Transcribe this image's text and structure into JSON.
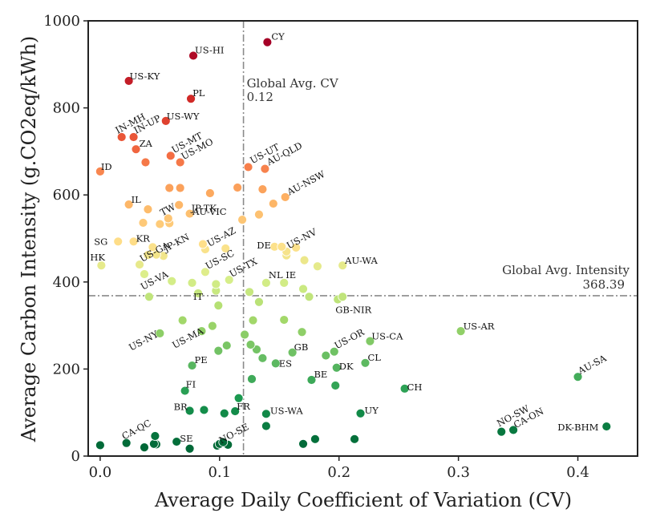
{
  "chart_data": {
    "type": "scatter",
    "xlabel": "Average Daily Coefficient of Variation (CV)",
    "ylabel": "Average Carbon Intensity (g.CO2eq/kWh)",
    "xlim": [
      -0.01,
      0.45
    ],
    "ylim": [
      0,
      1000
    ],
    "xticks": [
      "0.0",
      "0.1",
      "0.2",
      "0.3",
      "0.4"
    ],
    "xtick_values": [
      0,
      0.1,
      0.2,
      0.3,
      0.4
    ],
    "yticks": [
      "0",
      "200",
      "400",
      "600",
      "800",
      "1000"
    ],
    "ytick_values": [
      0,
      200,
      400,
      600,
      800,
      1000
    ],
    "grid": false,
    "colormap": "red-yellow-green, colored by carbon intensity",
    "reference_lines": [
      {
        "axis": "x",
        "value": 0.12,
        "label": "Global Avg. CV",
        "value_label": "0.12"
      },
      {
        "axis": "y",
        "value": 368.39,
        "label": "Global Avg. Intensity",
        "value_label": "368.39"
      }
    ],
    "points": [
      {
        "label": "CY",
        "x": 0.14,
        "y": 951
      },
      {
        "label": "US-HI",
        "x": 0.078,
        "y": 920
      },
      {
        "label": "US-KY",
        "x": 0.024,
        "y": 862
      },
      {
        "label": "PL",
        "x": 0.076,
        "y": 821
      },
      {
        "label": "US-WY",
        "x": 0.055,
        "y": 770
      },
      {
        "label": "IN-MH",
        "x": 0.018,
        "y": 733
      },
      {
        "label": "IN-UP",
        "x": 0.028,
        "y": 733
      },
      {
        "label": "ZA",
        "x": 0.03,
        "y": 705
      },
      {
        "label": "US-MT",
        "x": 0.059,
        "y": 690
      },
      {
        "label": "US-MO",
        "x": 0.067,
        "y": 675
      },
      {
        "label": "ID",
        "x": 0.0,
        "y": 654
      },
      {
        "label": "US-UT",
        "x": 0.124,
        "y": 664
      },
      {
        "label": "AU-QLD",
        "x": 0.138,
        "y": 660
      },
      {
        "label": "AU-NSW",
        "x": 0.155,
        "y": 595
      },
      {
        "label": "IL",
        "x": 0.024,
        "y": 578
      },
      {
        "label": "JP-TK",
        "x": 0.075,
        "y": 557
      },
      {
        "label": "AU-VIC",
        "x": 0.119,
        "y": 543
      },
      {
        "label": "TW",
        "x": 0.05,
        "y": 533
      },
      {
        "label": "SG",
        "x": 0.015,
        "y": 493
      },
      {
        "label": "KR",
        "x": 0.028,
        "y": 493
      },
      {
        "label": "JP-KN",
        "x": 0.053,
        "y": 460
      },
      {
        "label": "US-AZ",
        "x": 0.088,
        "y": 475
      },
      {
        "label": "DE",
        "x": 0.146,
        "y": 481
      },
      {
        "label": "US-NV",
        "x": 0.156,
        "y": 470
      },
      {
        "label": "US-SC",
        "x": 0.088,
        "y": 423
      },
      {
        "label": "HK",
        "x": 0.001,
        "y": 438
      },
      {
        "label": "US-GA",
        "x": 0.033,
        "y": 440
      },
      {
        "label": "US-TX",
        "x": 0.108,
        "y": 405
      },
      {
        "label": "AU-WA",
        "x": 0.203,
        "y": 438
      },
      {
        "label": "US-VA",
        "x": 0.037,
        "y": 418
      },
      {
        "label": "NL",
        "x": 0.139,
        "y": 398
      },
      {
        "label": "IE",
        "x": 0.154,
        "y": 398
      },
      {
        "label": "IT",
        "x": 0.082,
        "y": 374
      },
      {
        "label": "GB-NIR",
        "x": 0.199,
        "y": 360
      },
      {
        "label": "US-NY",
        "x": 0.05,
        "y": 282
      },
      {
        "label": "US-MA",
        "x": 0.085,
        "y": 287
      },
      {
        "label": "US-AR",
        "x": 0.302,
        "y": 287
      },
      {
        "label": "US-OR",
        "x": 0.196,
        "y": 240
      },
      {
        "label": "US-CA",
        "x": 0.226,
        "y": 264
      },
      {
        "label": "GB",
        "x": 0.161,
        "y": 238
      },
      {
        "label": "PE",
        "x": 0.077,
        "y": 208
      },
      {
        "label": "ES",
        "x": 0.147,
        "y": 213
      },
      {
        "label": "DK",
        "x": 0.198,
        "y": 203
      },
      {
        "label": "CL",
        "x": 0.222,
        "y": 214
      },
      {
        "label": "AU-SA",
        "x": 0.4,
        "y": 182
      },
      {
        "label": "BE",
        "x": 0.177,
        "y": 175
      },
      {
        "label": "FI",
        "x": 0.071,
        "y": 150
      },
      {
        "label": "CH",
        "x": 0.255,
        "y": 155
      },
      {
        "label": "BR",
        "x": 0.075,
        "y": 104
      },
      {
        "label": "FR",
        "x": 0.113,
        "y": 103
      },
      {
        "label": "US-WA",
        "x": 0.139,
        "y": 97
      },
      {
        "label": "UY",
        "x": 0.218,
        "y": 98
      },
      {
        "label": "NO-SW",
        "x": 0.336,
        "y": 56
      },
      {
        "label": "CA-ON",
        "x": 0.346,
        "y": 60
      },
      {
        "label": "DK-BHM",
        "x": 0.424,
        "y": 68
      },
      {
        "label": "CA-QC",
        "x": 0.022,
        "y": 30
      },
      {
        "label": "SE",
        "x": 0.064,
        "y": 33
      },
      {
        "label": "NO-SE",
        "x": 0.1,
        "y": 28
      },
      {
        "label": "",
        "x": 0.133,
        "y": 555
      },
      {
        "label": "",
        "x": 0.115,
        "y": 617
      },
      {
        "label": "",
        "x": 0.136,
        "y": 613
      },
      {
        "label": "",
        "x": 0.145,
        "y": 580
      },
      {
        "label": "",
        "x": 0.092,
        "y": 604
      },
      {
        "label": "",
        "x": 0.067,
        "y": 616
      },
      {
        "label": "",
        "x": 0.058,
        "y": 616
      },
      {
        "label": "",
        "x": 0.038,
        "y": 675
      },
      {
        "label": "",
        "x": 0.066,
        "y": 577
      },
      {
        "label": "",
        "x": 0.04,
        "y": 567
      },
      {
        "label": "",
        "x": 0.057,
        "y": 546
      },
      {
        "label": "",
        "x": 0.036,
        "y": 536
      },
      {
        "label": "",
        "x": 0.058,
        "y": 535
      },
      {
        "label": "",
        "x": 0.044,
        "y": 480
      },
      {
        "label": "",
        "x": 0.04,
        "y": 462
      },
      {
        "label": "",
        "x": 0.047,
        "y": 463
      },
      {
        "label": "",
        "x": 0.086,
        "y": 487
      },
      {
        "label": "",
        "x": 0.105,
        "y": 477
      },
      {
        "label": "",
        "x": 0.152,
        "y": 481
      },
      {
        "label": "",
        "x": 0.164,
        "y": 479
      },
      {
        "label": "",
        "x": 0.156,
        "y": 461
      },
      {
        "label": "",
        "x": 0.171,
        "y": 450
      },
      {
        "label": "",
        "x": 0.182,
        "y": 436
      },
      {
        "label": "",
        "x": 0.06,
        "y": 402
      },
      {
        "label": "",
        "x": 0.077,
        "y": 398
      },
      {
        "label": "",
        "x": 0.097,
        "y": 395
      },
      {
        "label": "",
        "x": 0.097,
        "y": 380
      },
      {
        "label": "",
        "x": 0.125,
        "y": 377
      },
      {
        "label": "",
        "x": 0.17,
        "y": 384
      },
      {
        "label": "",
        "x": 0.175,
        "y": 366
      },
      {
        "label": "",
        "x": 0.203,
        "y": 366
      },
      {
        "label": "",
        "x": 0.041,
        "y": 366
      },
      {
        "label": "",
        "x": 0.133,
        "y": 354
      },
      {
        "label": "",
        "x": 0.099,
        "y": 346
      },
      {
        "label": "",
        "x": 0.069,
        "y": 312
      },
      {
        "label": "",
        "x": 0.128,
        "y": 312
      },
      {
        "label": "",
        "x": 0.154,
        "y": 313
      },
      {
        "label": "",
        "x": 0.094,
        "y": 299
      },
      {
        "label": "",
        "x": 0.121,
        "y": 279
      },
      {
        "label": "",
        "x": 0.169,
        "y": 285
      },
      {
        "label": "",
        "x": 0.126,
        "y": 256
      },
      {
        "label": "",
        "x": 0.131,
        "y": 245
      },
      {
        "label": "",
        "x": 0.106,
        "y": 254
      },
      {
        "label": "",
        "x": 0.099,
        "y": 242
      },
      {
        "label": "",
        "x": 0.136,
        "y": 225
      },
      {
        "label": "",
        "x": 0.189,
        "y": 231
      },
      {
        "label": "",
        "x": 0.127,
        "y": 177
      },
      {
        "label": "",
        "x": 0.197,
        "y": 162
      },
      {
        "label": "",
        "x": 0.116,
        "y": 133
      },
      {
        "label": "",
        "x": 0.087,
        "y": 106
      },
      {
        "label": "",
        "x": 0.104,
        "y": 98
      },
      {
        "label": "",
        "x": 0.139,
        "y": 69
      },
      {
        "label": "",
        "x": 0.046,
        "y": 46
      },
      {
        "label": "",
        "x": 0.045,
        "y": 28
      },
      {
        "label": "",
        "x": 0.047,
        "y": 27
      },
      {
        "label": "",
        "x": 0.0,
        "y": 25
      },
      {
        "label": "",
        "x": 0.037,
        "y": 20
      },
      {
        "label": "",
        "x": 0.075,
        "y": 17
      },
      {
        "label": "",
        "x": 0.098,
        "y": 24
      },
      {
        "label": "",
        "x": 0.103,
        "y": 32
      },
      {
        "label": "",
        "x": 0.107,
        "y": 26
      },
      {
        "label": "",
        "x": 0.17,
        "y": 28
      },
      {
        "label": "",
        "x": 0.18,
        "y": 39
      },
      {
        "label": "",
        "x": 0.213,
        "y": 39
      }
    ]
  }
}
